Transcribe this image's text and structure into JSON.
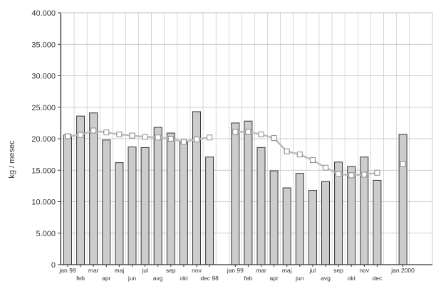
{
  "chart_data": {
    "type": "bar",
    "ylabel": "kg / mesec",
    "ylim": [
      0,
      40000
    ],
    "yticks": [
      "0",
      "5.000",
      "10.000",
      "15.000",
      "20.000",
      "25.000",
      "30.000",
      "35.000",
      "40.000"
    ],
    "grid": true,
    "legend": "none",
    "categories": [
      "jan 98",
      "feb",
      "mar",
      "apr",
      "maj",
      "jun",
      "jul",
      "avg",
      "sep",
      "okt",
      "nov",
      "dec 98",
      "jan 99",
      "feb",
      "mar",
      "apr",
      "maj",
      "jun",
      "jul",
      "avg",
      "sep",
      "okt",
      "nov",
      "dec",
      "jan 2000"
    ],
    "series": [
      {
        "type": "bar",
        "values": [
          20600,
          23600,
          24100,
          19800,
          16200,
          18700,
          18600,
          21800,
          20900,
          19400,
          24300,
          17100,
          22500,
          22800,
          18600,
          14900,
          12200,
          14500,
          11800,
          13200,
          16300,
          15600,
          17100,
          13400,
          20700
        ]
      },
      {
        "type": "line",
        "values": [
          20400,
          20600,
          21300,
          21000,
          20700,
          20500,
          20300,
          20200,
          20000,
          19500,
          19900,
          20200,
          21100,
          21100,
          20700,
          20100,
          18000,
          17500,
          16600,
          15400,
          14400,
          14200,
          14300,
          14600,
          16000
        ]
      }
    ],
    "colors": {
      "bar_fill": "#cccccc",
      "bar_stroke": "#333333",
      "grid": "#bdbdbd",
      "axis": "#333333",
      "line": "#bbbbbb",
      "marker_fill": "#ffffff",
      "marker_stroke": "#888888"
    }
  }
}
